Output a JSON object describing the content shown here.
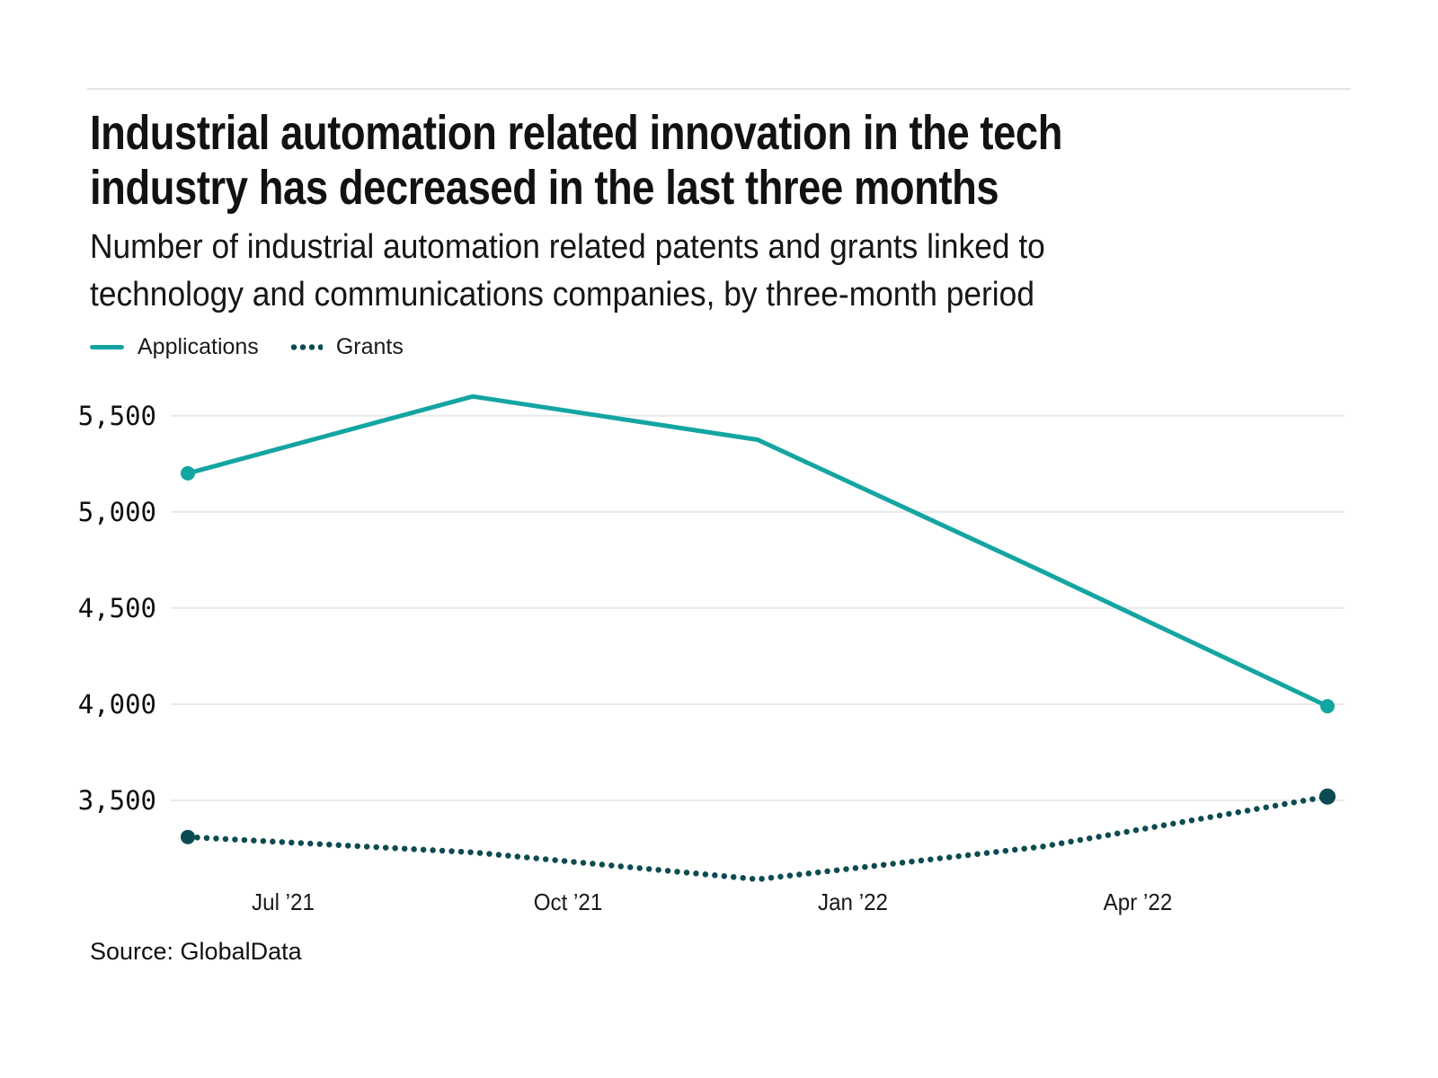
{
  "header": {
    "title_lines": [
      "Industrial automation related innovation in the tech",
      "industry has decreased in the last three months"
    ],
    "subtitle_lines": [
      "Number of industrial automation related patents and grants linked to",
      "technology and communications companies, by three-month period"
    ]
  },
  "legend": {
    "items": [
      {
        "label": "Applications",
        "swatch": "solid-teal-line"
      },
      {
        "label": "Grants",
        "swatch": "dotted-dark-teal-line"
      }
    ]
  },
  "colors": {
    "applications": "#14A5A2",
    "grants": "#0D4B52",
    "gridline": "#e9e9e9",
    "text": "#121212"
  },
  "chart_data": {
    "type": "line",
    "title": "Industrial automation related innovation in the tech industry has decreased in the last three months",
    "subtitle": "Number of industrial automation related patents and grants linked to technology and communications companies, by three-month period",
    "grid": "horizontal",
    "legend_position": "top-left",
    "x_tick_labels": [
      "Jul ’21",
      "Oct ’21",
      "Jan ’22",
      "Apr ’22"
    ],
    "y_tick_labels": [
      "5,500",
      "5,000",
      "4,500",
      "4,000",
      "3,500"
    ],
    "y_tick_values": [
      5500,
      5000,
      4500,
      4000,
      3500
    ],
    "ylim_top_value": 5500,
    "points_per_series": 5,
    "series": [
      {
        "name": "Applications",
        "style": "solid",
        "color": "#14A5A2",
        "values": [
          5200,
          5600,
          5375,
          4690,
          3990
        ]
      },
      {
        "name": "Grants",
        "style": "dotted",
        "color": "#0D4B52",
        "values": [
          3310,
          3230,
          3090,
          3260,
          3520
        ]
      }
    ]
  },
  "footer": {
    "source": "Source: GlobalData"
  }
}
